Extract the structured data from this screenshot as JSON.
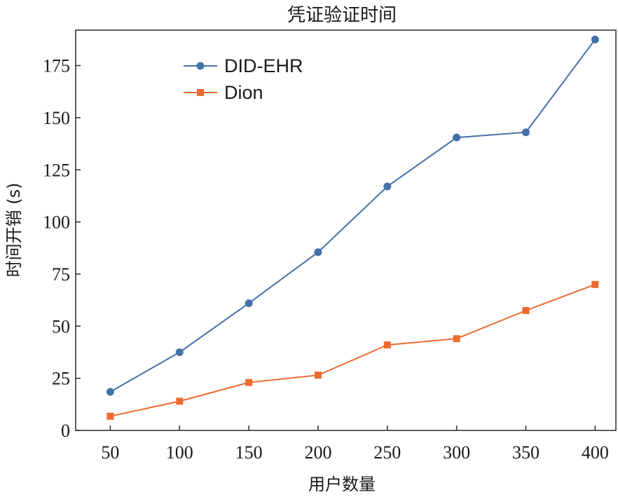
{
  "chart_data": {
    "type": "line",
    "title": "凭证验证时间",
    "xlabel": "用户数量",
    "ylabel": "时间开销 (s)",
    "x": [
      50,
      100,
      150,
      200,
      250,
      300,
      350,
      400
    ],
    "xticks": [
      50,
      100,
      150,
      200,
      250,
      300,
      350,
      400
    ],
    "yticks": [
      0,
      25,
      50,
      75,
      100,
      125,
      150,
      175
    ],
    "xlim": [
      25,
      415
    ],
    "ylim": [
      0,
      192
    ],
    "grid": false,
    "legend_position": "top-left",
    "series": [
      {
        "name": "DID-EHR",
        "color": "#4472a8",
        "marker": "circle",
        "values": [
          18.5,
          37.5,
          61,
          85.5,
          117,
          140.5,
          143,
          187.5
        ]
      },
      {
        "name": "Dion",
        "color": "#ed6b30",
        "marker": "square",
        "values": [
          6.8,
          14,
          23,
          26.5,
          41,
          44,
          57.5,
          70
        ]
      }
    ]
  }
}
